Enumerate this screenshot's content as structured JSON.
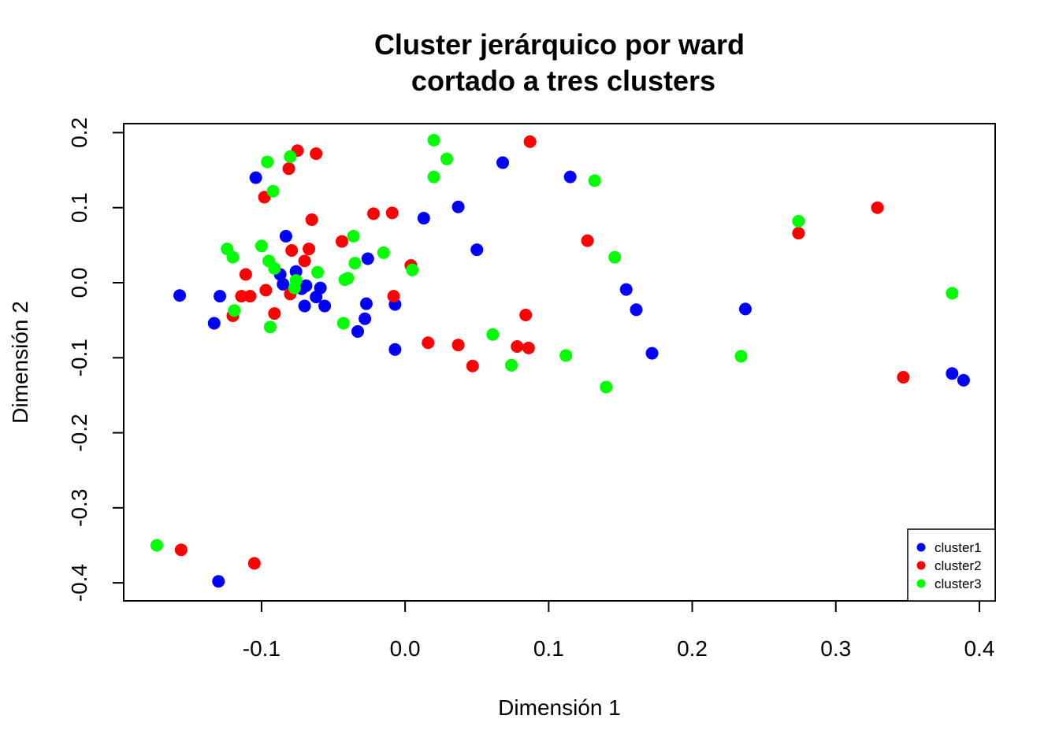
{
  "chart_data": {
    "type": "scatter",
    "title_line1": "Cluster jerárquico por ward",
    "title_line2": "cortado a tres clusters",
    "xlabel": "Dimensión 1",
    "ylabel": "Dimensión 2",
    "xlim": [
      -0.196,
      0.411
    ],
    "ylim": [
      -0.424,
      0.212
    ],
    "x_ticks": [
      -0.1,
      0.0,
      0.1,
      0.2,
      0.3,
      0.4
    ],
    "x_tick_labels": [
      "-0.1",
      "0.0",
      "0.1",
      "0.2",
      "0.3",
      "0.4"
    ],
    "y_ticks": [
      -0.4,
      -0.3,
      -0.2,
      -0.1,
      0.0,
      0.1,
      0.2
    ],
    "y_tick_labels": [
      "-0.4",
      "-0.3",
      "-0.2",
      "-0.1",
      "0.0",
      "0.1",
      "0.2"
    ],
    "legend_position": "bottom-right",
    "grid": false,
    "series": [
      {
        "name": "cluster1",
        "color": "#0000ff",
        "points": [
          [
            -0.104,
            0.14
          ],
          [
            -0.157,
            -0.017
          ],
          [
            -0.129,
            -0.018
          ],
          [
            -0.133,
            -0.054
          ],
          [
            -0.083,
            0.062
          ],
          [
            -0.087,
            0.011
          ],
          [
            -0.085,
            -0.002
          ],
          [
            -0.076,
            0.015
          ],
          [
            -0.072,
            -0.008
          ],
          [
            -0.069,
            -0.004
          ],
          [
            -0.07,
            -0.031
          ],
          [
            -0.062,
            -0.019
          ],
          [
            -0.059,
            -0.007
          ],
          [
            -0.056,
            -0.031
          ],
          [
            -0.033,
            -0.065
          ],
          [
            -0.026,
            0.032
          ],
          [
            -0.027,
            -0.028
          ],
          [
            -0.028,
            -0.048
          ],
          [
            -0.007,
            -0.029
          ],
          [
            -0.007,
            -0.089
          ],
          [
            0.013,
            0.086
          ],
          [
            0.037,
            0.101
          ],
          [
            0.05,
            0.044
          ],
          [
            0.068,
            0.16
          ],
          [
            0.115,
            0.141
          ],
          [
            0.154,
            -0.009
          ],
          [
            0.161,
            -0.036
          ],
          [
            0.172,
            -0.094
          ],
          [
            0.237,
            -0.035
          ],
          [
            0.381,
            -0.121
          ],
          [
            0.389,
            -0.13
          ],
          [
            -0.13,
            -0.398
          ]
        ]
      },
      {
        "name": "cluster2",
        "color": "#ff0000",
        "points": [
          [
            -0.075,
            0.176
          ],
          [
            -0.062,
            0.172
          ],
          [
            -0.081,
            0.152
          ],
          [
            -0.098,
            0.114
          ],
          [
            -0.065,
            0.084
          ],
          [
            -0.044,
            0.055
          ],
          [
            -0.079,
            0.043
          ],
          [
            -0.067,
            0.045
          ],
          [
            -0.07,
            0.029
          ],
          [
            -0.111,
            0.011
          ],
          [
            -0.114,
            -0.018
          ],
          [
            -0.108,
            -0.018
          ],
          [
            -0.097,
            -0.01
          ],
          [
            -0.08,
            -0.015
          ],
          [
            -0.12,
            -0.044
          ],
          [
            -0.091,
            -0.041
          ],
          [
            -0.022,
            0.092
          ],
          [
            -0.009,
            0.093
          ],
          [
            0.004,
            0.023
          ],
          [
            -0.008,
            -0.018
          ],
          [
            0.016,
            -0.08
          ],
          [
            0.037,
            -0.083
          ],
          [
            0.047,
            -0.111
          ],
          [
            0.084,
            -0.043
          ],
          [
            0.078,
            -0.085
          ],
          [
            0.086,
            -0.087
          ],
          [
            0.087,
            0.188
          ],
          [
            0.127,
            0.056
          ],
          [
            0.274,
            0.066
          ],
          [
            0.329,
            0.1
          ],
          [
            0.347,
            -0.126
          ],
          [
            -0.156,
            -0.356
          ],
          [
            -0.105,
            -0.374
          ]
        ]
      },
      {
        "name": "cluster3",
        "color": "#00ff00",
        "points": [
          [
            -0.096,
            0.161
          ],
          [
            -0.08,
            0.168
          ],
          [
            -0.092,
            0.122
          ],
          [
            -0.124,
            0.045
          ],
          [
            -0.12,
            0.034
          ],
          [
            -0.1,
            0.049
          ],
          [
            -0.095,
            0.029
          ],
          [
            -0.091,
            0.019
          ],
          [
            -0.076,
            0.003
          ],
          [
            -0.077,
            -0.007
          ],
          [
            -0.061,
            0.014
          ],
          [
            -0.119,
            -0.037
          ],
          [
            -0.094,
            -0.059
          ],
          [
            -0.036,
            0.062
          ],
          [
            -0.035,
            0.026
          ],
          [
            -0.042,
            0.004
          ],
          [
            -0.04,
            0.006
          ],
          [
            -0.043,
            -0.054
          ],
          [
            -0.015,
            0.04
          ],
          [
            0.005,
            0.017
          ],
          [
            0.02,
            0.19
          ],
          [
            0.029,
            0.165
          ],
          [
            0.02,
            0.141
          ],
          [
            0.061,
            -0.069
          ],
          [
            0.074,
            -0.11
          ],
          [
            0.112,
            -0.097
          ],
          [
            0.132,
            0.136
          ],
          [
            0.146,
            0.034
          ],
          [
            0.14,
            -0.139
          ],
          [
            0.234,
            -0.098
          ],
          [
            0.274,
            0.082
          ],
          [
            0.381,
            -0.014
          ],
          [
            -0.173,
            -0.35
          ]
        ]
      }
    ]
  }
}
